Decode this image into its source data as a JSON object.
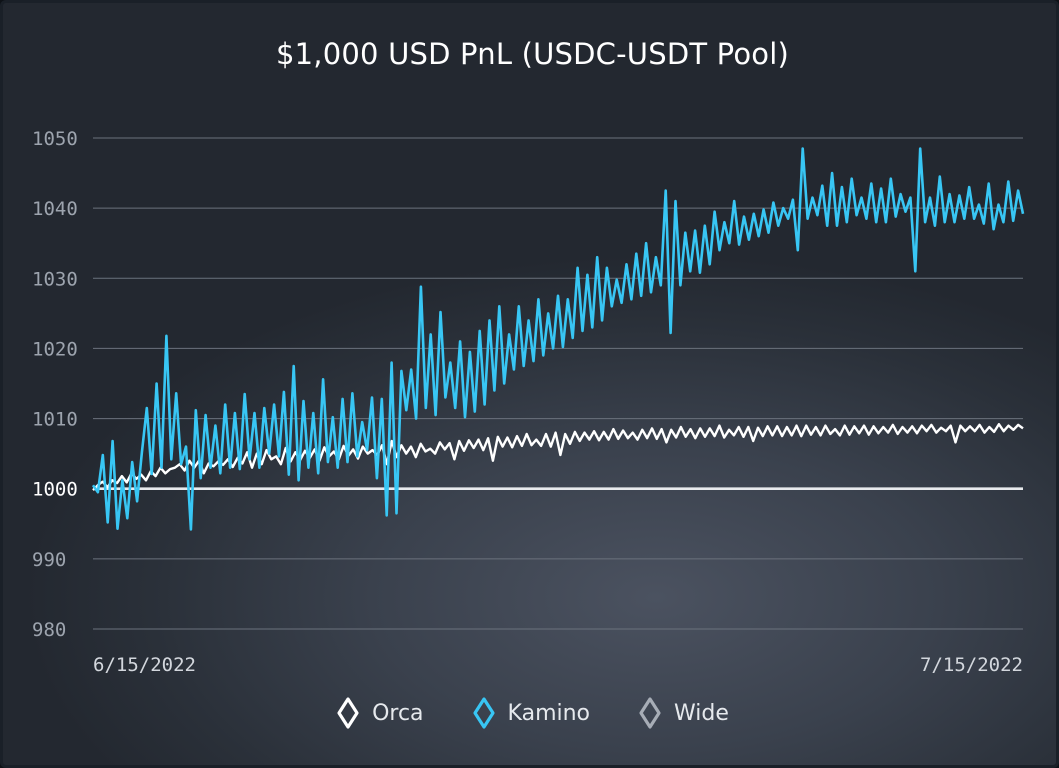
{
  "chart_data": {
    "type": "line",
    "title": "$1,000 USD PnL (USDC-USDT Pool)",
    "xlabel": "",
    "ylabel": "",
    "x_ticks": [
      "6/15/2022",
      "7/15/2022"
    ],
    "y_ticks": [
      980,
      990,
      1000,
      1010,
      1020,
      1030,
      1040,
      1050
    ],
    "ylim": [
      980,
      1050
    ],
    "grid": true,
    "legend_position": "bottom-center",
    "series": [
      {
        "name": "Kamino",
        "color": "#38c6f4",
        "values": [
          1000.5,
          999.5,
          1004.8,
          995.2,
          1006.8,
          994.3,
          1001.2,
          995.8,
          1003.8,
          998.2,
          1005.2,
          1011.5,
          1002.1,
          1015.0,
          1003.0,
          1021.8,
          1004.2,
          1013.6,
          1003.5,
          1006.0,
          994.2,
          1011.2,
          1001.5,
          1010.5,
          1003.0,
          1009.0,
          1002.2,
          1012.0,
          1003.0,
          1010.8,
          1002.8,
          1013.5,
          1004.2,
          1010.8,
          1003.0,
          1011.5,
          1005.0,
          1012.0,
          1004.6,
          1013.8,
          1002.0,
          1017.5,
          1001.2,
          1012.5,
          1003.0,
          1010.8,
          1002.2,
          1015.6,
          1003.8,
          1010.2,
          1003.0,
          1012.8,
          1003.8,
          1013.6,
          1004.6,
          1009.5,
          1005.5,
          1013.0,
          1001.5,
          1012.8,
          996.2,
          1018.0,
          996.5,
          1016.8,
          1011.2,
          1017.0,
          1010.0,
          1028.8,
          1011.5,
          1022.0,
          1010.5,
          1025.2,
          1013.0,
          1018.0,
          1011.5,
          1021.0,
          1010.2,
          1019.5,
          1011.0,
          1022.5,
          1012.0,
          1024.0,
          1014.0,
          1026.0,
          1015.0,
          1022.0,
          1017.0,
          1026.0,
          1017.5,
          1024.0,
          1018.2,
          1027.0,
          1019.0,
          1025.0,
          1020.0,
          1027.5,
          1020.2,
          1027.0,
          1021.5,
          1031.5,
          1022.5,
          1030.5,
          1023.0,
          1033.0,
          1024.0,
          1031.5,
          1026.0,
          1029.8,
          1026.5,
          1032.0,
          1027.0,
          1033.5,
          1027.5,
          1035.0,
          1028.0,
          1033.0,
          1029.0,
          1042.5,
          1022.2,
          1041.0,
          1029.0,
          1036.5,
          1031.0,
          1036.8,
          1030.8,
          1037.5,
          1032.0,
          1039.5,
          1034.0,
          1038.0,
          1035.0,
          1041.0,
          1034.8,
          1038.8,
          1035.5,
          1039.2,
          1036.0,
          1039.8,
          1036.5,
          1040.8,
          1037.5,
          1040.0,
          1038.5,
          1041.2,
          1034.0,
          1048.5,
          1038.5,
          1041.5,
          1039.0,
          1043.2,
          1037.5,
          1045.0,
          1037.5,
          1043.0,
          1038.0,
          1044.2,
          1039.0,
          1041.5,
          1038.5,
          1043.5,
          1038.0,
          1042.8,
          1038.0,
          1044.2,
          1038.8,
          1042.0,
          1039.5,
          1041.5,
          1031.0,
          1048.5,
          1038.0,
          1041.5,
          1037.5,
          1044.5,
          1038.0,
          1042.0,
          1038.0,
          1041.8,
          1038.5,
          1043.0,
          1038.5,
          1040.5,
          1037.8,
          1043.5,
          1037.0,
          1040.5,
          1038.0,
          1043.8,
          1038.2,
          1042.5,
          1039.2
        ]
      },
      {
        "name": "Orca",
        "color": "#ffffff",
        "values": [
          999.8,
          1000.5,
          1001.0,
          1000.2,
          1001.2,
          1000.8,
          1001.8,
          1000.9,
          1002.2,
          1001.4,
          1002.0,
          1001.2,
          1002.5,
          1001.8,
          1003.0,
          1002.2,
          1002.8,
          1003.0,
          1003.5,
          1002.6,
          1004.0,
          1003.0,
          1004.0,
          1002.2,
          1003.6,
          1003.2,
          1003.9,
          1003.4,
          1004.2,
          1003.1,
          1004.4,
          1003.6,
          1005.2,
          1003.0,
          1005.0,
          1003.5,
          1005.5,
          1004.2,
          1004.6,
          1003.5,
          1005.8,
          1003.9,
          1005.2,
          1004.1,
          1005.4,
          1004.4,
          1005.6,
          1004.0,
          1005.9,
          1004.6,
          1005.3,
          1004.2,
          1006.1,
          1004.7,
          1005.6,
          1004.3,
          1006.0,
          1005.0,
          1005.5,
          1004.8,
          1006.2,
          1003.5,
          1006.8,
          1004.5,
          1006.2,
          1005.0,
          1006.0,
          1004.5,
          1006.4,
          1005.3,
          1005.7,
          1005.0,
          1006.6,
          1005.6,
          1006.5,
          1004.2,
          1006.8,
          1005.4,
          1006.9,
          1005.8,
          1007.0,
          1005.5,
          1007.2,
          1004.0,
          1007.4,
          1006.0,
          1007.3,
          1005.9,
          1007.5,
          1006.1,
          1007.8,
          1006.2,
          1007.0,
          1006.1,
          1007.8,
          1006.0,
          1008.0,
          1004.8,
          1007.8,
          1006.4,
          1008.1,
          1006.8,
          1008.0,
          1007.0,
          1008.2,
          1006.9,
          1008.1,
          1007.0,
          1008.5,
          1007.1,
          1008.3,
          1007.2,
          1008.0,
          1007.0,
          1008.4,
          1007.2,
          1008.6,
          1007.1,
          1008.5,
          1006.6,
          1008.4,
          1007.3,
          1008.8,
          1007.4,
          1008.5,
          1007.2,
          1008.6,
          1007.4,
          1008.6,
          1007.5,
          1009.0,
          1007.3,
          1008.4,
          1007.6,
          1008.8,
          1007.4,
          1008.8,
          1006.8,
          1008.7,
          1007.5,
          1008.9,
          1007.6,
          1008.9,
          1007.5,
          1008.8,
          1007.6,
          1009.0,
          1007.5,
          1009.0,
          1007.7,
          1008.8,
          1007.6,
          1009.0,
          1007.8,
          1008.5,
          1007.6,
          1009.0,
          1007.7,
          1008.9,
          1007.9,
          1009.0,
          1007.7,
          1008.9,
          1007.9,
          1008.8,
          1008.0,
          1009.1,
          1007.8,
          1008.8,
          1008.0,
          1008.9,
          1007.9,
          1009.0,
          1008.2,
          1009.1,
          1008.0,
          1008.7,
          1008.2,
          1009.0,
          1006.6,
          1009.0,
          1008.2,
          1008.9,
          1008.2,
          1009.1,
          1008.0,
          1008.8,
          1008.1,
          1009.2,
          1008.2,
          1009.0,
          1008.4,
          1009.1,
          1008.6
        ]
      },
      {
        "name": "Wide",
        "color": "#e8eaed",
        "values": [
          1000,
          1000
        ]
      }
    ]
  }
}
